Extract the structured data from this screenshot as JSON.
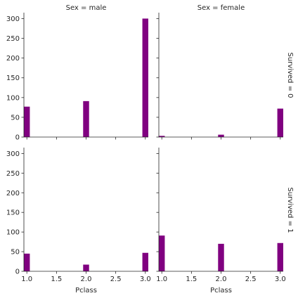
{
  "chart_data": {
    "type": "bar",
    "layout": "facet-grid",
    "x_variable": "Pclass",
    "xlabel": "Pclass",
    "ylabel": "",
    "xlim": [
      0.95,
      3.05
    ],
    "ylim": [
      0,
      315
    ],
    "x_ticks": [
      "1.0",
      "1.5",
      "2.0",
      "2.5",
      "3.0"
    ],
    "y_ticks": [
      "0",
      "50",
      "100",
      "150",
      "200",
      "250",
      "300"
    ],
    "column_titles": [
      "Sex = male",
      "Sex = female"
    ],
    "row_titles": [
      "Survived = 0",
      "Survived = 1"
    ],
    "bar_color": "#800080",
    "bin_width": 0.2,
    "grid": false,
    "panels": [
      {
        "sex": "male",
        "survived": 0,
        "bars": [
          {
            "x": 1.0,
            "value": 77
          },
          {
            "x": 2.0,
            "value": 91
          },
          {
            "x": 3.0,
            "value": 300
          }
        ]
      },
      {
        "sex": "female",
        "survived": 0,
        "bars": [
          {
            "x": 1.0,
            "value": 3
          },
          {
            "x": 2.0,
            "value": 6
          },
          {
            "x": 3.0,
            "value": 72
          }
        ]
      },
      {
        "sex": "male",
        "survived": 1,
        "bars": [
          {
            "x": 1.0,
            "value": 45
          },
          {
            "x": 2.0,
            "value": 17
          },
          {
            "x": 3.0,
            "value": 47
          }
        ]
      },
      {
        "sex": "female",
        "survived": 1,
        "bars": [
          {
            "x": 1.0,
            "value": 91
          },
          {
            "x": 2.0,
            "value": 70
          },
          {
            "x": 3.0,
            "value": 72
          }
        ]
      }
    ]
  }
}
